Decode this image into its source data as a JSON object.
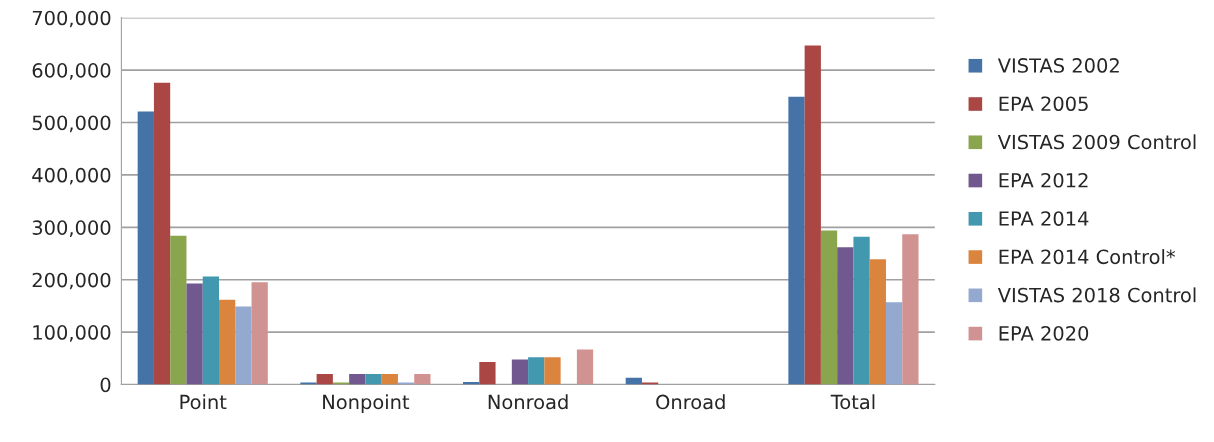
{
  "chart_data": {
    "type": "bar",
    "categories": [
      "Point",
      "Nonpoint",
      "Nonroad",
      "Onroad",
      "Total"
    ],
    "series": [
      {
        "name": "VISTAS 2002",
        "color": "#4572a7",
        "values": [
          521000,
          4000,
          5000,
          13000,
          549000
        ]
      },
      {
        "name": "EPA 2005",
        "color": "#aa4643",
        "values": [
          576000,
          20000,
          43000,
          4000,
          647000
        ]
      },
      {
        "name": "VISTAS 2009 Control",
        "color": "#89a54e",
        "values": [
          284000,
          4000,
          null,
          null,
          294000
        ]
      },
      {
        "name": "EPA 2012",
        "color": "#71588f",
        "values": [
          193000,
          20000,
          48000,
          null,
          262000
        ]
      },
      {
        "name": "EPA 2014",
        "color": "#4198af",
        "values": [
          206000,
          20000,
          52000,
          null,
          282000
        ]
      },
      {
        "name": "EPA 2014 Control*",
        "color": "#db843d",
        "values": [
          162000,
          20000,
          52000,
          null,
          239000
        ]
      },
      {
        "name": "VISTAS 2018 Control",
        "color": "#93a9cf",
        "values": [
          149000,
          4000,
          null,
          null,
          157000
        ]
      },
      {
        "name": "EPA 2020",
        "color": "#d19392",
        "values": [
          195000,
          20000,
          67000,
          null,
          287000
        ]
      }
    ],
    "ylim": [
      0,
      700000
    ],
    "yticks": [
      {
        "value": 0,
        "label": "0"
      },
      {
        "value": 100000,
        "label": "100,000"
      },
      {
        "value": 200000,
        "label": "200,000"
      },
      {
        "value": 300000,
        "label": "300,000"
      },
      {
        "value": 400000,
        "label": "400,000"
      },
      {
        "value": 500000,
        "label": "500,000"
      },
      {
        "value": 600000,
        "label": "600,000"
      },
      {
        "value": 700000,
        "label": "700,000"
      }
    ],
    "grid": "y",
    "legend": "right"
  }
}
